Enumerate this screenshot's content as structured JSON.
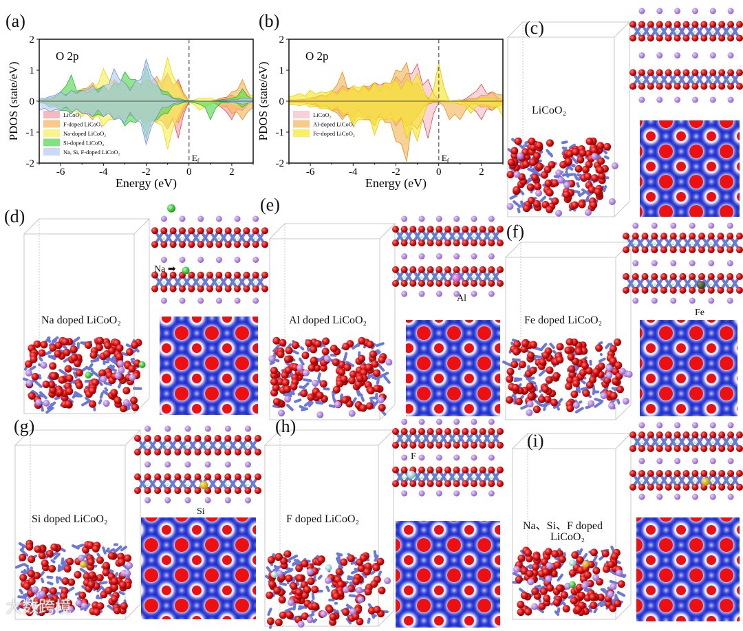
{
  "panels": {
    "a": "(a)",
    "b": "(b)",
    "c": "(c)",
    "d": "(d)",
    "e": "(e)",
    "f": "(f)",
    "g": "(g)",
    "h": "(h)",
    "i": "(i)"
  },
  "structures": {
    "c": {
      "title": "LiCoO₂"
    },
    "d": {
      "title": "Na doped LiCoO₂",
      "dopant_label": "Na"
    },
    "e": {
      "title": "Al doped LiCoO₂",
      "dopant_label": "Al"
    },
    "f": {
      "title": "Fe doped LiCoO₂",
      "dopant_label": "Fe"
    },
    "g": {
      "title": "Si doped LiCoO₂",
      "dopant_label": "Si"
    },
    "h": {
      "title": "F doped LiCoO₂",
      "dopant_label": "F"
    },
    "i": {
      "title": "Na、Si、F doped",
      "title2": "LiCoO₂"
    }
  },
  "colors": {
    "oxygen": "#d81414",
    "cobalt": "#6a78d8",
    "lithium": "#b07ed8",
    "sodium": "#2ec42e",
    "aluminium": "#e070d0",
    "iron": "#4a5a3a",
    "silicon": "#e0c020",
    "fluorine": "#a8e0d8",
    "density_bg": "#1f2fcf"
  },
  "watermark": "大数跨境",
  "chart_data": [
    {
      "type": "area",
      "panel": "a",
      "annotation": "O 2p",
      "fermi_label": "Ef",
      "xlabel": "Energy (eV)",
      "ylabel": "PDOS (state/eV)",
      "xlim": [
        -7,
        3
      ],
      "ylim": [
        -2,
        2
      ],
      "xticks": [
        "-6",
        "-4",
        "-2",
        "0",
        "2"
      ],
      "yticks": [
        "2",
        "1",
        "0",
        "-1",
        "-2"
      ],
      "legend_position": "bottom-left",
      "x": [
        -7,
        -6.5,
        -6,
        -5.5,
        -5,
        -4.5,
        -4,
        -3.5,
        -3,
        -2.5,
        -2,
        -1.5,
        -1,
        -0.5,
        0,
        0.5,
        1,
        1.5,
        2,
        2.5,
        3
      ],
      "series": [
        {
          "name": "LiCoO₂",
          "color": "#f4a0a8",
          "line": "#e84050",
          "up": [
            0.05,
            0.1,
            0.2,
            0.3,
            0.35,
            0.5,
            0.45,
            0.6,
            0.5,
            0.5,
            0.6,
            0.55,
            0.9,
            0.7,
            0.02,
            0,
            0,
            0.1,
            0.2,
            0.15,
            0
          ],
          "down": [
            -0.05,
            -0.1,
            -0.2,
            -0.3,
            -0.4,
            -0.5,
            -0.45,
            -0.6,
            -0.55,
            -0.5,
            -0.7,
            -0.6,
            -0.9,
            -1.2,
            -0.02,
            0,
            0,
            -0.2,
            -0.6,
            -0.3,
            0
          ]
        },
        {
          "name": "F-doped LiCoO₂",
          "color": "#f6b860",
          "line": "#e89020",
          "up": [
            0.05,
            0.1,
            0.25,
            0.35,
            0.4,
            0.6,
            0.5,
            0.7,
            0.6,
            0.5,
            0.7,
            0.8,
            0.9,
            0.6,
            0.02,
            0,
            0,
            0.1,
            0.3,
            0.7,
            0
          ],
          "down": [
            -0.05,
            -0.1,
            -0.2,
            -0.35,
            -0.4,
            -0.6,
            -0.5,
            -0.6,
            -0.6,
            -0.55,
            -0.7,
            -0.7,
            -0.8,
            -0.7,
            -0.02,
            0,
            0,
            -0.2,
            -0.4,
            -0.6,
            -0.2
          ]
        },
        {
          "name": "Na-doped LiCoO₂",
          "color": "#f8f060",
          "line": "#e8d800",
          "up": [
            0.05,
            0.1,
            0.2,
            0.35,
            0.4,
            0.5,
            1.05,
            0.6,
            0.6,
            0.6,
            0.7,
            0.6,
            1.4,
            0.5,
            0.02,
            0.1,
            0.1,
            0.05,
            0.1,
            0.3,
            0.2
          ],
          "down": [
            -0.05,
            -0.1,
            -0.2,
            -0.3,
            -0.5,
            -0.55,
            -0.8,
            -0.6,
            -0.6,
            -0.6,
            -0.8,
            -0.7,
            -1.55,
            -0.5,
            -0.02,
            -0.3,
            -0.1,
            -0.05,
            -0.1,
            -0.2,
            -0.1
          ]
        },
        {
          "name": "Si-doped LiCoO₂",
          "color": "#58d858",
          "line": "#30b030",
          "up": [
            0.05,
            0.1,
            0.3,
            0.85,
            0.35,
            0.4,
            0.5,
            0.6,
            0.95,
            0.7,
            1.15,
            0.5,
            0.3,
            0.1,
            0.02,
            0,
            0,
            0.05,
            0.1,
            0.4,
            0.05
          ],
          "down": [
            -0.05,
            -0.2,
            -0.3,
            -0.4,
            -0.4,
            -0.5,
            -0.5,
            -0.6,
            -0.8,
            -0.7,
            -1.2,
            -0.6,
            -0.4,
            -0.1,
            -0.02,
            -0.1,
            -0.6,
            -0.05,
            -0.05,
            -0.2,
            0
          ]
        },
        {
          "name": "Na, Si, F-doped LiCoO₂",
          "color": "#b8ccf4",
          "line": "#6a90e0",
          "up": [
            0.1,
            0.15,
            0.3,
            0.35,
            0.35,
            0.5,
            0.5,
            1.05,
            0.6,
            0.65,
            1.35,
            0.6,
            0.2,
            0.05,
            0.01,
            0,
            0,
            0.02,
            0.05,
            0.1,
            0.1
          ],
          "down": [
            -0.3,
            -0.35,
            -0.3,
            -0.35,
            -0.4,
            -0.5,
            -0.5,
            -0.6,
            -0.7,
            -0.6,
            -1.4,
            -0.5,
            -0.2,
            -0.05,
            -0.01,
            0,
            0,
            -0.02,
            -0.05,
            -0.1,
            -0.05
          ]
        }
      ]
    },
    {
      "type": "area",
      "panel": "b",
      "annotation": "O 2p",
      "fermi_label": "Ef",
      "xlabel": "Energy (eV)",
      "ylabel": "PDOS (state/eV)",
      "xlim": [
        -7,
        3
      ],
      "ylim": [
        -2,
        2
      ],
      "xticks": [
        "-6",
        "-4",
        "-2",
        "0",
        "2"
      ],
      "yticks": [
        "2",
        "1",
        "0",
        "-1",
        "-2"
      ],
      "legend_position": "bottom-left",
      "x": [
        -7,
        -6.5,
        -6,
        -5.5,
        -5,
        -4.5,
        -4,
        -3.5,
        -3,
        -2.5,
        -2,
        -1.5,
        -1,
        -0.5,
        0,
        0.5,
        1,
        1.5,
        2,
        2.5,
        3
      ],
      "series": [
        {
          "name": "LiCoO₂",
          "color": "#f6c0c8",
          "line": "#e84050",
          "up": [
            0.05,
            0.05,
            0.1,
            0.2,
            0.3,
            0.5,
            0.45,
            0.5,
            0.6,
            0.6,
            0.8,
            0.9,
            1.2,
            0.7,
            0.02,
            0,
            0,
            0.2,
            0.55,
            0.3,
            0
          ],
          "down": [
            -0.05,
            -0.05,
            -0.1,
            -0.2,
            -0.3,
            -0.5,
            -0.5,
            -0.5,
            -0.6,
            -0.6,
            -0.8,
            -0.8,
            -0.9,
            -1.2,
            -0.02,
            0,
            0,
            -0.2,
            -0.6,
            -0.3,
            0
          ]
        },
        {
          "name": "Al-doped LiCoO₂",
          "color": "#f4b860",
          "line": "#e09020",
          "up": [
            0.05,
            0.05,
            0.1,
            0.2,
            0.3,
            0.95,
            0.4,
            0.5,
            0.6,
            0.6,
            1.0,
            1.25,
            0.6,
            0.1,
            0.02,
            0,
            0,
            0.1,
            0.2,
            0.3,
            0.2
          ],
          "down": [
            -0.05,
            -0.05,
            -0.1,
            -0.2,
            -0.3,
            -0.6,
            -0.7,
            -0.6,
            -0.8,
            -0.7,
            -1.3,
            -1.95,
            -0.5,
            -0.1,
            -0.02,
            -0.6,
            -0.6,
            -0.1,
            -0.2,
            -0.3,
            -0.1
          ]
        },
        {
          "name": "Fe-doped LiCoO₂",
          "color": "#f8e830",
          "line": "#e8c800",
          "up": [
            0.15,
            0.25,
            0.35,
            0.3,
            0.35,
            0.4,
            0.5,
            0.5,
            0.6,
            0.6,
            0.7,
            0.7,
            0.9,
            0.05,
            1.25,
            0,
            0.05,
            0.05,
            0.1,
            0.1,
            0.1
          ],
          "down": [
            -0.1,
            -0.15,
            -0.2,
            -0.25,
            -0.3,
            -0.4,
            -0.8,
            -0.6,
            -1.1,
            -0.6,
            -0.7,
            -1.2,
            -1.3,
            -0.05,
            -0.02,
            -0.05,
            -0.1,
            -0.4,
            -0.1,
            -0.2,
            -0.5
          ]
        }
      ]
    }
  ]
}
